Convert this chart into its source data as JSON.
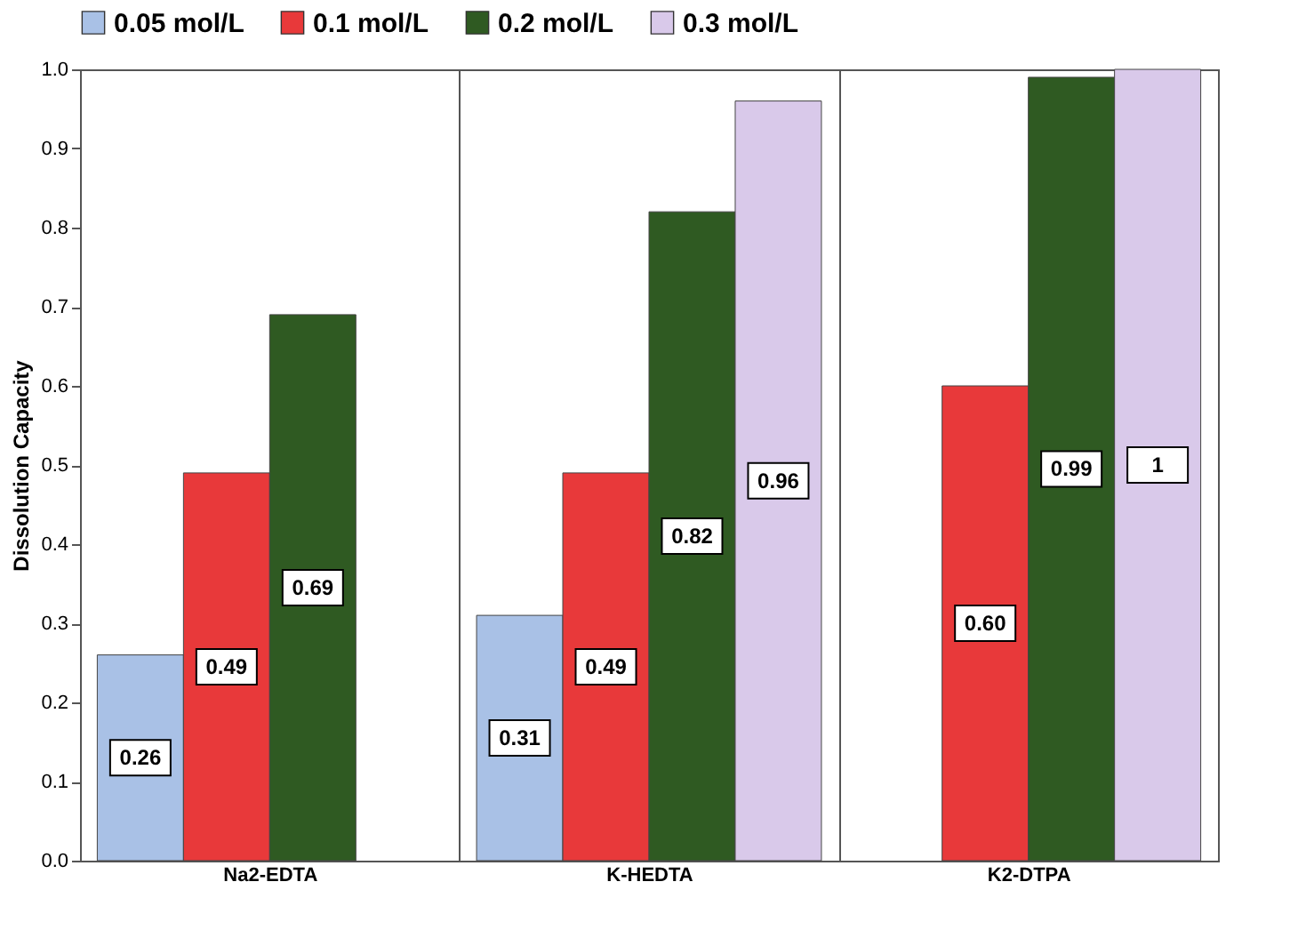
{
  "chart_data": {
    "type": "bar",
    "ylabel": "Dissolution Capacity",
    "categories": [
      "Na2-EDTA",
      "K-HEDTA",
      "K2-DTPA"
    ],
    "series": [
      {
        "name": "0.05 mol/L",
        "color": "#a9c1e6",
        "values": [
          0.26,
          0.31,
          null
        ],
        "value_labels": [
          "0.26",
          "0.31",
          null
        ]
      },
      {
        "name": "0.1 mol/L",
        "color": "#e8393a",
        "values": [
          0.49,
          0.49,
          0.6
        ],
        "value_labels": [
          "0.49",
          "0.49",
          "0.60"
        ]
      },
      {
        "name": "0.2 mol/L",
        "color": "#2f5a22",
        "values": [
          0.69,
          0.82,
          0.99
        ],
        "value_labels": [
          "0.69",
          "0.82",
          "0.99"
        ]
      },
      {
        "name": "0.3 mol/L",
        "color": "#d9c9ea",
        "values": [
          null,
          0.96,
          1
        ],
        "value_labels": [
          null,
          "0.96",
          "1"
        ]
      }
    ],
    "ylim": [
      0,
      1
    ],
    "yticks": [
      {
        "value": 0,
        "label": "0.0"
      },
      0.1,
      0.2,
      0.3,
      0.4,
      0.5,
      0.6,
      0.7,
      0.8,
      0.9,
      {
        "value": 1,
        "label": "1.0"
      }
    ],
    "grid": "x",
    "legend": "top"
  }
}
